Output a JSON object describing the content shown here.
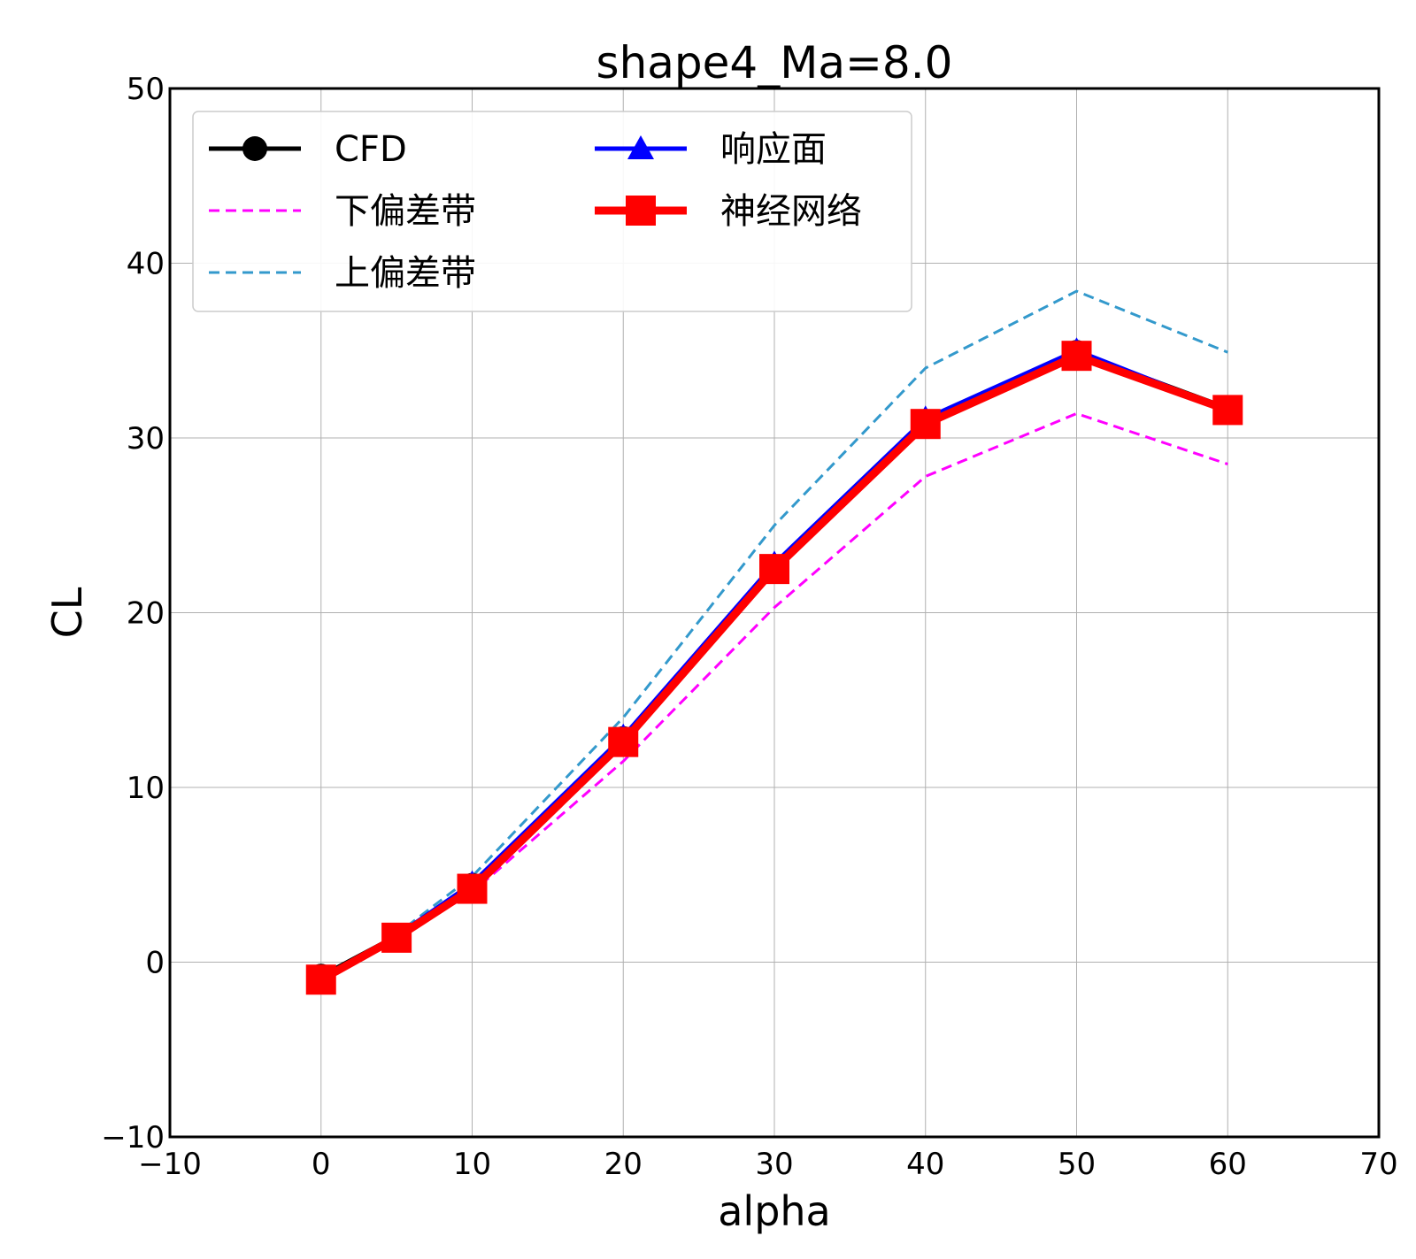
{
  "chart_data": {
    "type": "line",
    "title": "shape4_Ma=8.0",
    "xlabel": "alpha",
    "ylabel": "CL",
    "xlim": [
      -10,
      70
    ],
    "ylim": [
      -10,
      50
    ],
    "xticks": [
      -10,
      0,
      10,
      20,
      30,
      40,
      50,
      60,
      70
    ],
    "yticks": [
      -10,
      0,
      10,
      20,
      30,
      40,
      50
    ],
    "xtick_labels": [
      "−10",
      "0",
      "10",
      "20",
      "30",
      "40",
      "50",
      "60",
      "70"
    ],
    "ytick_labels": [
      "−10",
      "0",
      "10",
      "20",
      "30",
      "40",
      "50"
    ],
    "grid": true,
    "legend_position": "upper-left",
    "series": [
      {
        "name": "CFD",
        "color": "#000000",
        "style": "solid",
        "marker": "circle",
        "x": [
          0,
          5,
          10,
          20,
          30,
          40,
          50,
          60
        ],
        "y": [
          -0.8,
          1.5,
          4.4,
          12.8,
          22.6,
          30.9,
          34.9,
          31.7
        ]
      },
      {
        "name": "响应面",
        "color": "#0000ff",
        "style": "solid",
        "marker": "triangle",
        "x": [
          0,
          5,
          10,
          20,
          30,
          40,
          50,
          60
        ],
        "y": [
          -0.9,
          1.5,
          4.5,
          12.9,
          22.8,
          31.1,
          35.0,
          31.6
        ]
      },
      {
        "name": "下偏差带",
        "color": "#ff00ff",
        "style": "dashed",
        "marker": "none",
        "x": [
          0,
          5,
          10,
          20,
          30,
          40,
          50,
          60
        ],
        "y": [
          -0.9,
          1.3,
          4.0,
          11.5,
          20.3,
          27.8,
          31.4,
          28.5
        ]
      },
      {
        "name": "神经网络",
        "color": "#ff0000",
        "style": "solid",
        "marker": "square",
        "x": [
          0,
          5,
          10,
          20,
          30,
          40,
          50,
          60
        ],
        "y": [
          -1.0,
          1.4,
          4.2,
          12.6,
          22.5,
          30.8,
          34.7,
          31.6
        ]
      },
      {
        "name": "上偏差带",
        "color": "#3399cc",
        "style": "dashed",
        "marker": "none",
        "x": [
          0,
          5,
          10,
          20,
          30,
          40,
          50,
          60
        ],
        "y": [
          -1.0,
          1.6,
          4.9,
          14.0,
          25.0,
          34.0,
          38.4,
          34.9
        ]
      }
    ]
  }
}
